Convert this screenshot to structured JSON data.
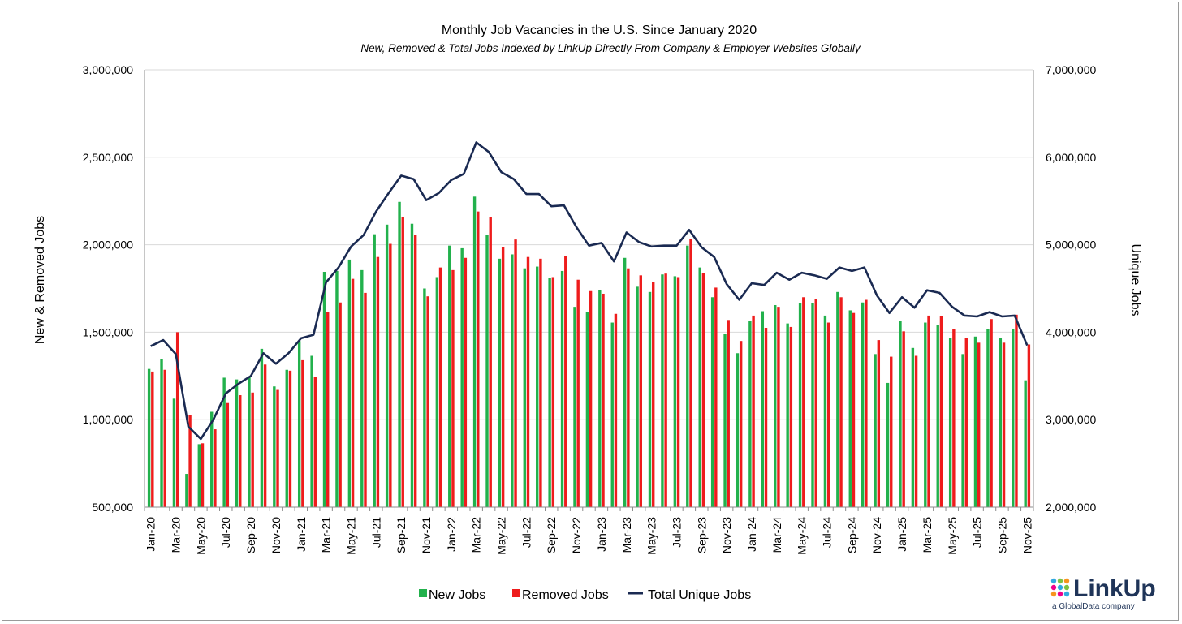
{
  "chart_data": {
    "type": "bar",
    "title": "Monthly Job Vacancies in the U.S. Since January 2020",
    "subtitle": "New, Removed & Total Jobs Indexed by LinkUp Directly From Company & Employer Websites Globally",
    "ylabel": "New & Removed Jobs",
    "y2label": "Unique Jobs",
    "ylim": [
      500000,
      3000000
    ],
    "y2lim": [
      2000000,
      7000000
    ],
    "yticks": [
      "500,000",
      "1,000,000",
      "1,500,000",
      "2,000,000",
      "2,500,000",
      "3,000,000"
    ],
    "y2ticks": [
      "2,000,000",
      "3,000,000",
      "4,000,000",
      "5,000,000",
      "6,000,000",
      "7,000,000"
    ],
    "categories": [
      "Jan-20",
      "Feb-20",
      "Mar-20",
      "Apr-20",
      "May-20",
      "Jun-20",
      "Jul-20",
      "Aug-20",
      "Sep-20",
      "Oct-20",
      "Nov-20",
      "Dec-20",
      "Jan-21",
      "Feb-21",
      "Mar-21",
      "Apr-21",
      "May-21",
      "Jun-21",
      "Jul-21",
      "Aug-21",
      "Sep-21",
      "Oct-21",
      "Nov-21",
      "Dec-21",
      "Jan-22",
      "Feb-22",
      "Mar-22",
      "Apr-22",
      "May-22",
      "Jun-22",
      "Jul-22",
      "Aug-22",
      "Sep-22",
      "Oct-22",
      "Nov-22",
      "Dec-22",
      "Jan-23",
      "Feb-23",
      "Mar-23",
      "Apr-23",
      "May-23",
      "Jun-23",
      "Jul-23",
      "Aug-23",
      "Sep-23",
      "Oct-23",
      "Nov-23",
      "Dec-23",
      "Jan-24",
      "Feb-24",
      "Mar-24",
      "Apr-24",
      "May-24",
      "Jun-24",
      "Jul-24",
      "Aug-24",
      "Sep-24",
      "Oct-24",
      "Nov-24",
      "Dec-24",
      "Jan-25",
      "Feb-25",
      "Mar-25",
      "Apr-25",
      "May-25",
      "Jun-25",
      "Jul-25",
      "Aug-25",
      "Sep-25",
      "Oct-25",
      "Nov-25"
    ],
    "tick_labels": [
      "Jan-20",
      "Mar-20",
      "May-20",
      "Jul-20",
      "Sep-20",
      "Nov-20",
      "Jan-21",
      "Mar-21",
      "May-21",
      "Jul-21",
      "Sep-21",
      "Nov-21",
      "Jan-22",
      "Mar-22",
      "May-22",
      "Jul-22",
      "Sep-22",
      "Nov-22",
      "Jan-23",
      "Mar-23",
      "May-23",
      "Jul-23",
      "Sep-23",
      "Nov-23",
      "Jan-24",
      "Mar-24",
      "May-24",
      "Jul-24",
      "Sep-24",
      "Nov-24",
      "Jan-25",
      "Mar-25",
      "May-25",
      "Jul-25",
      "Sep-25",
      "Nov-25"
    ],
    "series": [
      {
        "name": "New Jobs",
        "color": "#22b14c",
        "axis": "left",
        "kind": "bar",
        "values": [
          1290000,
          1345000,
          1120000,
          690000,
          860000,
          1045000,
          1240000,
          1230000,
          1245000,
          1405000,
          1190000,
          1285000,
          1450000,
          1365000,
          1845000,
          1850000,
          1915000,
          1855000,
          2060000,
          2115000,
          2245000,
          2120000,
          1750000,
          1815000,
          1995000,
          1980000,
          2275000,
          2055000,
          1920000,
          1945000,
          1865000,
          1875000,
          1810000,
          1850000,
          1645000,
          1615000,
          1740000,
          1555000,
          1925000,
          1760000,
          1730000,
          1830000,
          1820000,
          1995000,
          1870000,
          1700000,
          1490000,
          1380000,
          1565000,
          1620000,
          1655000,
          1550000,
          1665000,
          1665000,
          1595000,
          1730000,
          1625000,
          1670000,
          1375000,
          1210000,
          1565000,
          1410000,
          1555000,
          1540000,
          1465000,
          1375000,
          1475000,
          1520000,
          1465000,
          1520000,
          1225000
        ]
      },
      {
        "name": "Removed Jobs",
        "color": "#ee1c1c",
        "axis": "left",
        "kind": "bar",
        "values": [
          1275000,
          1285000,
          1500000,
          1025000,
          865000,
          945000,
          1095000,
          1140000,
          1155000,
          1315000,
          1170000,
          1280000,
          1340000,
          1245000,
          1615000,
          1670000,
          1805000,
          1725000,
          1930000,
          2005000,
          2160000,
          2055000,
          1705000,
          1870000,
          1855000,
          1925000,
          2190000,
          2160000,
          1985000,
          2030000,
          1930000,
          1920000,
          1815000,
          1935000,
          1800000,
          1735000,
          1720000,
          1605000,
          1865000,
          1825000,
          1785000,
          1835000,
          1815000,
          2035000,
          1840000,
          1755000,
          1570000,
          1450000,
          1595000,
          1525000,
          1645000,
          1530000,
          1700000,
          1690000,
          1555000,
          1700000,
          1610000,
          1685000,
          1455000,
          1360000,
          1505000,
          1365000,
          1595000,
          1590000,
          1520000,
          1465000,
          1440000,
          1575000,
          1440000,
          1600000,
          1430000
        ]
      },
      {
        "name": "Total Unique Jobs",
        "color": "#1a2a52",
        "axis": "right",
        "kind": "line",
        "values": [
          3840000,
          3910000,
          3750000,
          2920000,
          2780000,
          3000000,
          3300000,
          3410000,
          3500000,
          3760000,
          3640000,
          3760000,
          3930000,
          3970000,
          4570000,
          4740000,
          4980000,
          5110000,
          5380000,
          5590000,
          5790000,
          5750000,
          5510000,
          5590000,
          5740000,
          5810000,
          6170000,
          6060000,
          5830000,
          5750000,
          5580000,
          5580000,
          5440000,
          5450000,
          5200000,
          4990000,
          5020000,
          4810000,
          5140000,
          5030000,
          4980000,
          4990000,
          4990000,
          5170000,
          4970000,
          4860000,
          4550000,
          4370000,
          4560000,
          4540000,
          4680000,
          4600000,
          4680000,
          4650000,
          4610000,
          4740000,
          4700000,
          4740000,
          4420000,
          4220000,
          4400000,
          4280000,
          4480000,
          4450000,
          4290000,
          4190000,
          4180000,
          4230000,
          4180000,
          4190000,
          3850000
        ]
      }
    ],
    "legend": [
      "New Jobs",
      "Removed Jobs",
      "Total Unique Jobs"
    ],
    "legend_position": "bottom"
  },
  "branding": {
    "logo_text": "LinkUp",
    "logo_tagline": "a GlobalData company"
  }
}
